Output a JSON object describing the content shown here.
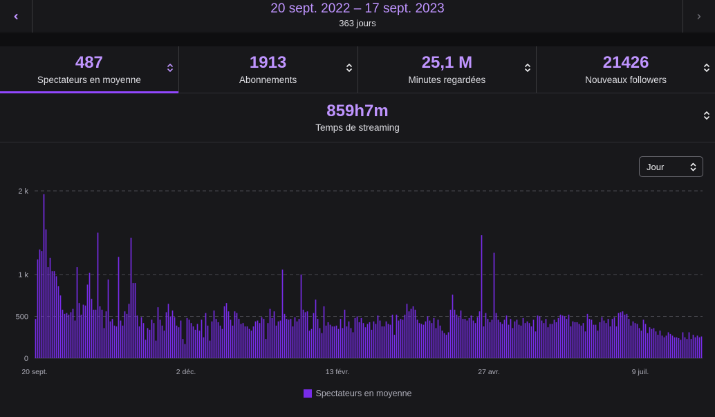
{
  "header": {
    "date_range": "20 sept. 2022 – 17 sept. 2023",
    "days": "363 jours"
  },
  "stats": [
    {
      "value": "487",
      "label": "Spectateurs en moyenne",
      "active": true
    },
    {
      "value": "1913",
      "label": "Abonnements",
      "active": false
    },
    {
      "value": "25,1 M",
      "label": "Minutes regardées",
      "active": false
    },
    {
      "value": "21426",
      "label": "Nouveaux followers",
      "active": false
    }
  ],
  "stat_wide": {
    "value": "859h7m",
    "label": "Temps de streaming"
  },
  "granularity": {
    "selected": "Jour"
  },
  "colors": {
    "accent": "#bf94ff",
    "bar": "#772ce8",
    "active_underline": "#9147ff"
  },
  "chart_data": {
    "type": "bar",
    "title": "",
    "xlabel": "",
    "ylabel": "",
    "ylim": [
      0,
      2000
    ],
    "yticks": [
      {
        "value": 0,
        "label": "0"
      },
      {
        "value": 500,
        "label": "500"
      },
      {
        "value": 1000,
        "label": "1 k"
      },
      {
        "value": 2000,
        "label": "2 k"
      }
    ],
    "xticks": [
      {
        "index": 0,
        "label": "20 sept."
      },
      {
        "index": 73,
        "label": "2 déc."
      },
      {
        "index": 146,
        "label": "13 févr."
      },
      {
        "index": 219,
        "label": "27 avr."
      },
      {
        "index": 292,
        "label": "9 juil."
      }
    ],
    "series": [
      {
        "name": "Spectateurs en moyenne",
        "values": [
          470,
          1180,
          1300,
          1280,
          1960,
          1540,
          1090,
          1200,
          1040,
          1040,
          980,
          860,
          750,
          580,
          530,
          540,
          520,
          550,
          590,
          450,
          1090,
          660,
          520,
          640,
          630,
          880,
          1020,
          710,
          580,
          580,
          1500,
          620,
          580,
          360,
          560,
          940,
          440,
          470,
          390,
          380,
          1210,
          450,
          390,
          560,
          530,
          650,
          1440,
          900,
          900,
          510,
          380,
          490,
          420,
          220,
          360,
          340,
          460,
          420,
          210,
          610,
          460,
          390,
          330,
          550,
          650,
          500,
          570,
          490,
          390,
          370,
          450,
          230,
          170,
          480,
          460,
          420,
          380,
          340,
          410,
          330,
          460,
          250,
          540,
          390,
          210,
          440,
          570,
          470,
          430,
          390,
          350,
          620,
          660,
          560,
          460,
          390,
          560,
          540,
          470,
          410,
          420,
          380,
          380,
          350,
          330,
          380,
          440,
          450,
          420,
          490,
          470,
          230,
          420,
          590,
          480,
          560,
          390,
          440,
          450,
          1060,
          530,
          470,
          460,
          470,
          380,
          490,
          440,
          470,
          1000,
          580,
          550,
          560,
          330,
          350,
          540,
          700,
          470,
          360,
          300,
          620,
          390,
          430,
          400,
          380,
          380,
          390,
          350,
          470,
          360,
          580,
          380,
          440,
          360,
          310,
          480,
          500,
          430,
          480,
          420,
          370,
          410,
          430,
          340,
          440,
          410,
          510,
          450,
          380,
          380,
          440,
          410,
          400,
          520,
          280,
          520,
          450,
          470,
          460,
          520,
          650,
          560,
          590,
          620,
          580,
          460,
          420,
          410,
          400,
          440,
          500,
          450,
          420,
          480,
          360,
          460,
          390,
          330,
          300,
          280,
          310,
          580,
          760,
          580,
          520,
          490,
          570,
          470,
          470,
          450,
          480,
          510,
          450,
          420,
          490,
          560,
          1470,
          380,
          540,
          470,
          430,
          460,
          1260,
          540,
          460,
          430,
          410,
          460,
          510,
          400,
          470,
          360,
          440,
          460,
          400,
          390,
          480,
          420,
          440,
          420,
          380,
          460,
          320,
          510,
          500,
          450,
          420,
          470,
          370,
          410,
          410,
          460,
          430,
          480,
          520,
          510,
          500,
          470,
          520,
          380,
          440,
          430,
          430,
          410,
          390,
          420,
          320,
          530,
          470,
          460,
          400,
          400,
          330,
          430,
          490,
          450,
          420,
          470,
          380,
          470,
          490,
          380,
          540,
          550,
          560,
          520,
          530,
          470,
          390,
          440,
          420,
          410,
          360,
          330,
          460,
          410,
          300,
          370,
          350,
          360,
          320,
          280,
          330,
          270,
          250,
          270,
          310,
          290,
          270,
          250,
          250,
          240,
          220,
          310,
          250,
          230,
          310,
          230,
          280,
          250,
          270,
          250,
          260
        ],
        "color": "#772ce8"
      }
    ]
  },
  "legend": {
    "label": "Spectateurs en moyenne"
  }
}
